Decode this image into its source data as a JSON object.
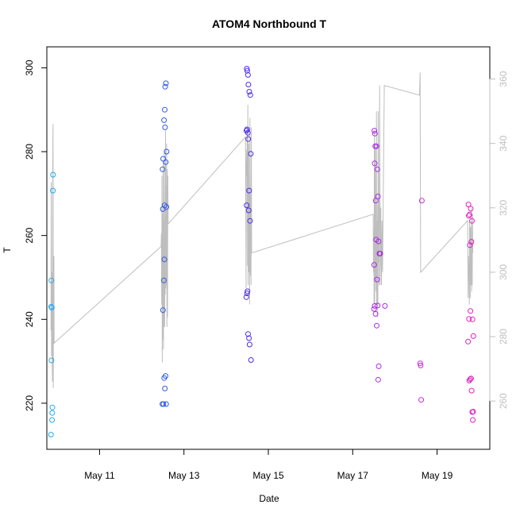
{
  "chart_data": {
    "type": "scatter",
    "title": "ATOM4 Northbound T",
    "xlabel": "Date",
    "ylabel": "T",
    "x_axis": {
      "type": "date",
      "range": [
        "2008-05-09T18:00",
        "2008-05-20T06:00"
      ],
      "ticks": [
        {
          "value": "2008-05-11",
          "label": "May 11"
        },
        {
          "value": "2008-05-13",
          "label": "May 13"
        },
        {
          "value": "2008-05-15",
          "label": "May 15"
        },
        {
          "value": "2008-05-17",
          "label": "May 17"
        },
        {
          "value": "2008-05-19",
          "label": "May 19"
        }
      ]
    },
    "y_axis_left": {
      "range": [
        209,
        305
      ],
      "ticks": [
        220,
        240,
        260,
        280,
        300
      ],
      "color": "#000000"
    },
    "y_axis_right": {
      "range": [
        245,
        370
      ],
      "ticks": [
        260,
        280,
        300,
        320,
        340,
        360
      ],
      "color": "#bebebe"
    },
    "grid": false,
    "legend": "none",
    "series": [
      {
        "type": "scatter",
        "axis": "left",
        "marker": "open-circle",
        "color_gradient": [
          "#22b0f0",
          "#2d6ee8",
          "#3a2fe6",
          "#7a2df0",
          "#c02ae6",
          "#e81fb8"
        ],
        "x": [
          "2008-05-09T20:20",
          "2008-05-09T20:25",
          "2008-05-09T20:35",
          "2008-05-09T20:40",
          "2008-05-09T20:50",
          "2008-05-09T21:00",
          "2008-05-09T21:05",
          "2008-05-09T21:10",
          "2008-05-09T21:25",
          "2008-05-09T21:30",
          "2008-05-12T11:45",
          "2008-05-12T11:50",
          "2008-05-12T12:00",
          "2008-05-12T12:05",
          "2008-05-12T12:10",
          "2008-05-12T12:20",
          "2008-05-12T12:35",
          "2008-05-12T12:40",
          "2008-05-12T12:45",
          "2008-05-12T12:50",
          "2008-05-12T13:00",
          "2008-05-12T13:05",
          "2008-05-12T13:10",
          "2008-05-12T13:15",
          "2008-05-12T13:20",
          "2008-05-12T13:30",
          "2008-05-12T13:40",
          "2008-05-12T13:45",
          "2008-05-12T13:50",
          "2008-05-12T14:00",
          "2008-05-12T14:05",
          "2008-05-14T11:30",
          "2008-05-14T11:35",
          "2008-05-14T11:40",
          "2008-05-14T11:45",
          "2008-05-14T11:50",
          "2008-05-14T11:55",
          "2008-05-14T12:00",
          "2008-05-14T12:10",
          "2008-05-14T12:20",
          "2008-05-14T12:25",
          "2008-05-14T12:30",
          "2008-05-14T12:35",
          "2008-05-14T12:40",
          "2008-05-14T12:50",
          "2008-05-14T13:00",
          "2008-05-14T13:05",
          "2008-05-14T13:10",
          "2008-05-14T13:20",
          "2008-05-14T13:35",
          "2008-05-14T13:45",
          "2008-05-14T14:00",
          "2008-05-14T14:10",
          "2008-05-17T12:10",
          "2008-05-17T12:15",
          "2008-05-17T12:20",
          "2008-05-17T12:30",
          "2008-05-17T12:35",
          "2008-05-17T12:40",
          "2008-05-17T12:50",
          "2008-05-17T13:00",
          "2008-05-17T13:05",
          "2008-05-17T13:20",
          "2008-05-17T13:30",
          "2008-05-17T13:40",
          "2008-05-17T13:50",
          "2008-05-17T14:00",
          "2008-05-17T14:10",
          "2008-05-17T14:20",
          "2008-05-17T14:30",
          "2008-05-17T14:40",
          "2008-05-17T14:50",
          "2008-05-17T15:10",
          "2008-05-17T15:20",
          "2008-05-17T15:40",
          "2008-05-17T18:20",
          "2008-05-18T14:20",
          "2008-05-18T14:40",
          "2008-05-18T15:00",
          "2008-05-18T15:20",
          "2008-05-19T17:40",
          "2008-05-19T17:50",
          "2008-05-19T18:00",
          "2008-05-19T18:10",
          "2008-05-19T18:20",
          "2008-05-19T18:30",
          "2008-05-19T18:40",
          "2008-05-19T18:50",
          "2008-05-19T19:00",
          "2008-05-19T19:10",
          "2008-05-19T19:20",
          "2008-05-19T19:30",
          "2008-05-19T19:40",
          "2008-05-19T19:50",
          "2008-05-19T20:00",
          "2008-05-19T20:10",
          "2008-05-19T20:20",
          "2008-05-19T20:30",
          "2008-05-19T20:40"
        ],
        "y": [
          212.5,
          243,
          249.3,
          230.2,
          242.8,
          216,
          217.7,
          219,
          270.7,
          274.5,
          219.8,
          275.8,
          266.3,
          242.2,
          278.3,
          219.8,
          249.3,
          287.5,
          226,
          254.3,
          267.2,
          290,
          223.5,
          285.8,
          295.5,
          226.5,
          277.5,
          296.3,
          219.8,
          266.8,
          280,
          245.3,
          285,
          267.2,
          299.8,
          246.2,
          285.3,
          299.3,
          246.7,
          284.5,
          298.3,
          236.5,
          283,
          296,
          266,
          235.5,
          270.7,
          294.3,
          234,
          263.5,
          293.5,
          279.5,
          230.3,
          242.5,
          253,
          285,
          277.2,
          243.2,
          284.3,
          281.3,
          241.3,
          268.3,
          259,
          281.3,
          238.5,
          249.5,
          275.8,
          243.3,
          269.3,
          225.6,
          258.6,
          228.8,
          255.7,
          255.7,
          255.7,
          243.2,
          229.5,
          229,
          220.8,
          268.3,
          234.7,
          267.4,
          264.7,
          240.1,
          225.4,
          265,
          257.7,
          225.7,
          242,
          266.4,
          225.9,
          258.5,
          223,
          263.5,
          217.9,
          240,
          216,
          218,
          236
        ]
      },
      {
        "type": "line",
        "axis": "right",
        "color": "#bebebe",
        "x": [
          "2008-05-09T20:20",
          "2008-05-09T20:30",
          "2008-05-09T20:40",
          "2008-05-09T20:50",
          "2008-05-09T21:00",
          "2008-05-09T21:10",
          "2008-05-09T21:20",
          "2008-05-09T21:30",
          "2008-05-09T21:40",
          "2008-05-09T21:50",
          "2008-05-09T22:00",
          "2008-05-09T22:10",
          "2008-05-12T11:00",
          "2008-05-12T11:10",
          "2008-05-12T11:20",
          "2008-05-12T11:30",
          "2008-05-12T11:40",
          "2008-05-12T11:50",
          "2008-05-12T12:00",
          "2008-05-12T12:10",
          "2008-05-12T12:20",
          "2008-05-12T12:30",
          "2008-05-12T12:40",
          "2008-05-12T12:50",
          "2008-05-12T13:00",
          "2008-05-12T13:10",
          "2008-05-12T13:20",
          "2008-05-12T13:30",
          "2008-05-12T13:40",
          "2008-05-12T13:50",
          "2008-05-12T14:00",
          "2008-05-12T14:10",
          "2008-05-12T14:20",
          "2008-05-12T14:30",
          "2008-05-12T14:40",
          "2008-05-12T14:50",
          "2008-05-12T15:00",
          "2008-05-14T11:00",
          "2008-05-14T11:10",
          "2008-05-14T11:20",
          "2008-05-14T11:30",
          "2008-05-14T11:40",
          "2008-05-14T11:50",
          "2008-05-14T12:00",
          "2008-05-14T12:10",
          "2008-05-14T12:20",
          "2008-05-14T12:30",
          "2008-05-14T12:40",
          "2008-05-14T12:50",
          "2008-05-14T13:00",
          "2008-05-14T13:10",
          "2008-05-14T13:20",
          "2008-05-14T13:30",
          "2008-05-14T13:40",
          "2008-05-14T13:50",
          "2008-05-14T14:00",
          "2008-05-14T14:10",
          "2008-05-14T14:20",
          "2008-05-14T14:30",
          "2008-05-17T11:40",
          "2008-05-17T11:50",
          "2008-05-17T12:00",
          "2008-05-17T12:10",
          "2008-05-17T12:20",
          "2008-05-17T12:30",
          "2008-05-17T12:40",
          "2008-05-17T12:50",
          "2008-05-17T13:00",
          "2008-05-17T13:10",
          "2008-05-17T13:20",
          "2008-05-17T13:30",
          "2008-05-17T13:40",
          "2008-05-17T13:50",
          "2008-05-17T14:00",
          "2008-05-17T14:10",
          "2008-05-17T14:20",
          "2008-05-17T14:30",
          "2008-05-17T14:40",
          "2008-05-17T14:50",
          "2008-05-17T15:00",
          "2008-05-17T15:20",
          "2008-05-17T15:40",
          "2008-05-17T16:00",
          "2008-05-17T16:20",
          "2008-05-17T16:40",
          "2008-05-17T17:00",
          "2008-05-17T18:00",
          "2008-05-18T14:00",
          "2008-05-18T14:20",
          "2008-05-18T14:40",
          "2008-05-19T17:20",
          "2008-05-19T17:40",
          "2008-05-19T17:50",
          "2008-05-19T18:00",
          "2008-05-19T18:10",
          "2008-05-19T18:20",
          "2008-05-19T18:30",
          "2008-05-19T18:40",
          "2008-05-19T18:50",
          "2008-05-19T19:00",
          "2008-05-19T19:10",
          "2008-05-19T19:20",
          "2008-05-19T19:30",
          "2008-05-19T19:40",
          "2008-05-19T19:50",
          "2008-05-19T20:00",
          "2008-05-19T20:10",
          "2008-05-19T20:20"
        ],
        "y": [
          282,
          328,
          274,
          300,
          276,
          266,
          332,
          346,
          264,
          300,
          305,
          278,
          308,
          312,
          290,
          330,
          272,
          318,
          279,
          334,
          276,
          316,
          283,
          338,
          283,
          318,
          293,
          344,
          295,
          327,
          296,
          340,
          283,
          332,
          286,
          330,
          315,
          342,
          320,
          295,
          332,
          338,
          330,
          345,
          302,
          352,
          296,
          318,
          340,
          300,
          325,
          290,
          348,
          330,
          299,
          324,
          296,
          345,
          306,
          318,
          300,
          313,
          290,
          344,
          290,
          306,
          340,
          297,
          304,
          294,
          350,
          290,
          316,
          286,
          321,
          290,
          350,
          303,
          317,
          296,
          358,
          296,
          320,
          296,
          316,
          300,
          358,
          355,
          362,
          300,
          316,
          292,
          305,
          300,
          302,
          290,
          316,
          306,
          292,
          314,
          302,
          296,
          320,
          294,
          302,
          296,
          318,
          306
        ]
      }
    ]
  }
}
